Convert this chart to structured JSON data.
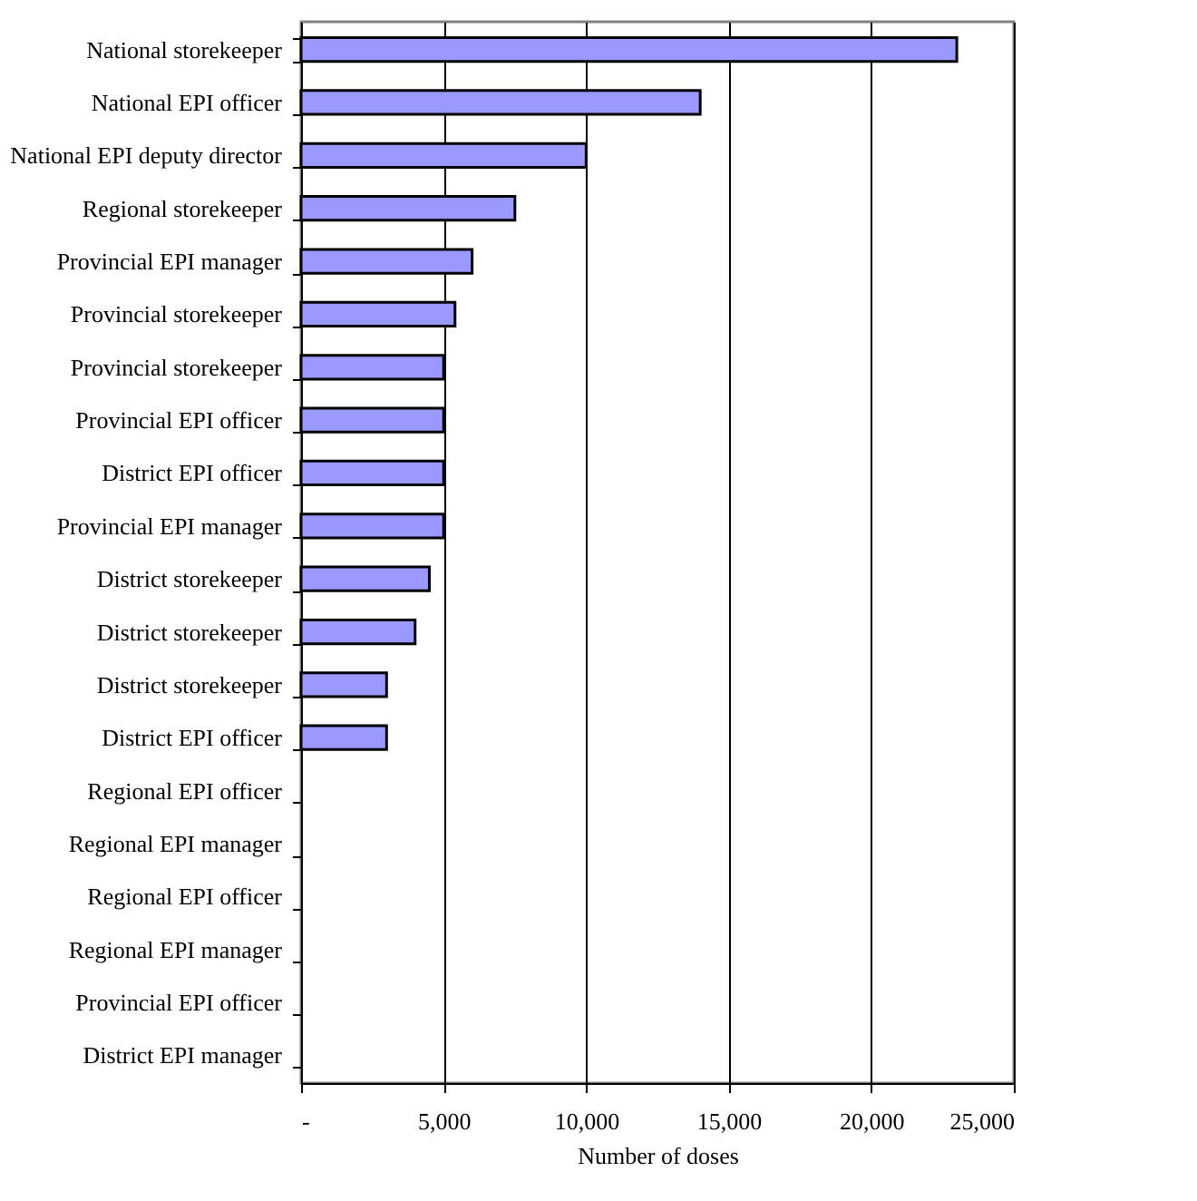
{
  "chart_data": {
    "type": "bar",
    "orientation": "horizontal",
    "xlabel": "Number of doses",
    "categories": [
      "National storekeeper",
      "National EPI officer",
      "National EPI deputy director",
      "Regional storekeeper",
      "Provincial EPI manager",
      "Provincial storekeeper",
      "Provincial storekeeper",
      "Provincial EPI officer",
      "District EPI officer",
      "Provincial EPI manager",
      "District storekeeper",
      "District storekeeper",
      "District storekeeper",
      "District EPI officer",
      "Regional EPI officer",
      "Regional EPI manager",
      "Regional EPI officer",
      "Regional EPI manager",
      "Provincial EPI officer",
      "District EPI manager"
    ],
    "values": [
      23000,
      14000,
      10000,
      7500,
      6000,
      5400,
      5000,
      5000,
      5000,
      5000,
      4500,
      4000,
      3000,
      3000,
      0,
      0,
      0,
      0,
      0,
      0
    ],
    "color": "#9999ff",
    "xlim": [
      0,
      25000
    ],
    "xticks": [
      {
        "value": 0,
        "label": "-"
      },
      {
        "value": 5000,
        "label": "5,000"
      },
      {
        "value": 10000,
        "label": "10,000"
      },
      {
        "value": 15000,
        "label": "15,000"
      },
      {
        "value": 20000,
        "label": "20,000"
      },
      {
        "value": 25000,
        "label": "25,000"
      }
    ],
    "grid": "x"
  }
}
